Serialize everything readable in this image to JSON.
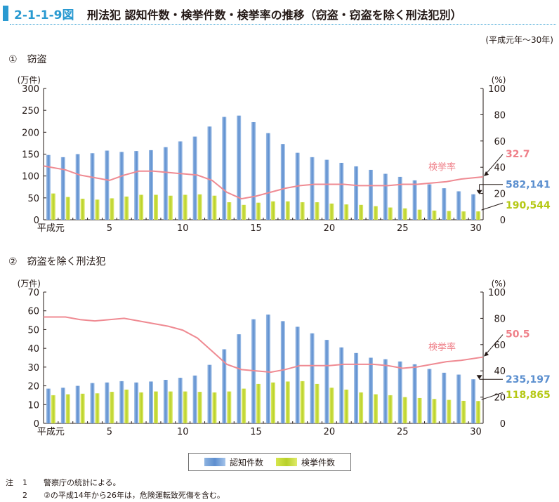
{
  "figure": {
    "number": "2-1-1-9図",
    "title": "刑法犯 認知件数・検挙件数・検挙率の推移（窃盗・窃盗を除く刑法犯別）",
    "period": "(平成元年〜30年)"
  },
  "colors": {
    "accent": "#2a9ad1",
    "recognized": "#6f9fd8",
    "cleared": "#c5da3a",
    "rate_line": "#ef8a92",
    "label_rate": "#ef7f88",
    "label_recognized": "#5b8fcf",
    "label_cleared": "#b5c814"
  },
  "legend": {
    "recognized": "認知件数",
    "cleared": "検挙件数"
  },
  "notes": [
    {
      "label": "注",
      "num": "1",
      "text": "警察庁の統計による。"
    },
    {
      "label": "",
      "num": "2",
      "text": "②の平成14年から26年は，危険運転致死傷を含む。"
    }
  ],
  "chart_data": [
    {
      "type": "bar",
      "panel_title": "①　窃盗",
      "x": [
        1,
        2,
        3,
        4,
        5,
        6,
        7,
        8,
        9,
        10,
        11,
        12,
        13,
        14,
        15,
        16,
        17,
        18,
        19,
        20,
        21,
        22,
        23,
        24,
        25,
        26,
        27,
        28,
        29,
        30
      ],
      "x_tick_labels": [
        {
          "x": 1,
          "label": "平成元"
        },
        {
          "x": 5,
          "label": "5"
        },
        {
          "x": 10,
          "label": "10"
        },
        {
          "x": 15,
          "label": "15"
        },
        {
          "x": 20,
          "label": "20"
        },
        {
          "x": 25,
          "label": "25"
        },
        {
          "x": 30,
          "label": "30"
        }
      ],
      "ylabel": "(万件)",
      "y2label": "(%)",
      "ylim": [
        0,
        300
      ],
      "y_ticks": [
        0,
        50,
        100,
        150,
        200,
        250,
        300
      ],
      "y2lim": [
        0,
        100
      ],
      "y2_ticks": [
        0,
        20,
        40,
        60,
        80,
        100
      ],
      "series": [
        {
          "name": "認知件数",
          "axis": "left",
          "values": [
            148,
            143,
            150,
            152,
            158,
            155,
            157,
            159,
            166,
            179,
            190,
            213,
            235,
            238,
            223,
            198,
            173,
            153,
            143,
            137,
            130,
            122,
            114,
            105,
            98,
            90,
            81,
            72,
            65,
            58.2
          ]
        },
        {
          "name": "検挙件数",
          "axis": "left",
          "values": [
            60,
            52,
            48,
            46,
            49,
            53,
            57,
            57,
            55,
            57,
            58,
            55,
            40,
            34,
            39,
            42,
            42,
            40,
            40,
            37,
            35,
            34,
            31,
            28,
            26,
            23,
            21,
            20,
            19,
            19.1
          ]
        },
        {
          "name": "検挙率",
          "axis": "right",
          "type": "line",
          "values": [
            41,
            38,
            34,
            32,
            30,
            34,
            37,
            37,
            36,
            35,
            34,
            30,
            21,
            16,
            18,
            21,
            24,
            26,
            27,
            27,
            27,
            26,
            26,
            26,
            27,
            27,
            28,
            29,
            31,
            32.7
          ]
        }
      ],
      "annotations": {
        "rate_label": "検挙率",
        "last_rate": "32.7",
        "last_recognized": "582,141",
        "last_cleared": "190,544"
      }
    },
    {
      "type": "bar",
      "panel_title": "②　窃盗を除く刑法犯",
      "x": [
        1,
        2,
        3,
        4,
        5,
        6,
        7,
        8,
        9,
        10,
        11,
        12,
        13,
        14,
        15,
        16,
        17,
        18,
        19,
        20,
        21,
        22,
        23,
        24,
        25,
        26,
        27,
        28,
        29,
        30
      ],
      "x_tick_labels": [
        {
          "x": 1,
          "label": "平成元"
        },
        {
          "x": 5,
          "label": "5"
        },
        {
          "x": 10,
          "label": "10"
        },
        {
          "x": 15,
          "label": "15"
        },
        {
          "x": 20,
          "label": "20"
        },
        {
          "x": 25,
          "label": "25"
        },
        {
          "x": 30,
          "label": "30"
        }
      ],
      "ylabel": "(万件)",
      "y2label": "(%)",
      "ylim": [
        0,
        70
      ],
      "y_ticks": [
        0,
        10,
        20,
        30,
        40,
        50,
        60,
        70
      ],
      "y2lim": [
        0,
        100
      ],
      "y2_ticks": [
        0,
        20,
        40,
        60,
        80,
        100
      ],
      "series": [
        {
          "name": "認知件数",
          "axis": "left",
          "values": [
            18.5,
            19,
            20,
            21.5,
            21.8,
            22.5,
            21.8,
            22.3,
            23.2,
            24.3,
            25.5,
            31.2,
            39.5,
            47.5,
            55.5,
            58,
            54.5,
            51.5,
            48,
            44.5,
            40.5,
            37.5,
            35,
            34.2,
            33,
            31.5,
            29,
            27,
            26,
            23.5
          ]
        },
        {
          "name": "検挙件数",
          "axis": "left",
          "values": [
            15,
            15.5,
            15.8,
            16,
            16.8,
            18,
            16.5,
            17,
            17,
            17,
            16.8,
            16.5,
            17,
            18.5,
            21,
            21.8,
            22.3,
            22.5,
            21,
            19,
            18,
            16.5,
            15.5,
            15,
            14,
            13.5,
            13,
            12.5,
            12,
            11.9
          ]
        },
        {
          "name": "検挙率",
          "axis": "right",
          "type": "line",
          "values": [
            81,
            81,
            79,
            78,
            79,
            80,
            78,
            76,
            74,
            71,
            65,
            55,
            45,
            41,
            40,
            39,
            41,
            44,
            44,
            44,
            45,
            45,
            45,
            44,
            42,
            43,
            45,
            47,
            48,
            50.5
          ]
        }
      ],
      "annotations": {
        "rate_label": "検挙率",
        "last_rate": "50.5",
        "last_recognized": "235,197",
        "last_cleared": "118,865"
      }
    }
  ]
}
